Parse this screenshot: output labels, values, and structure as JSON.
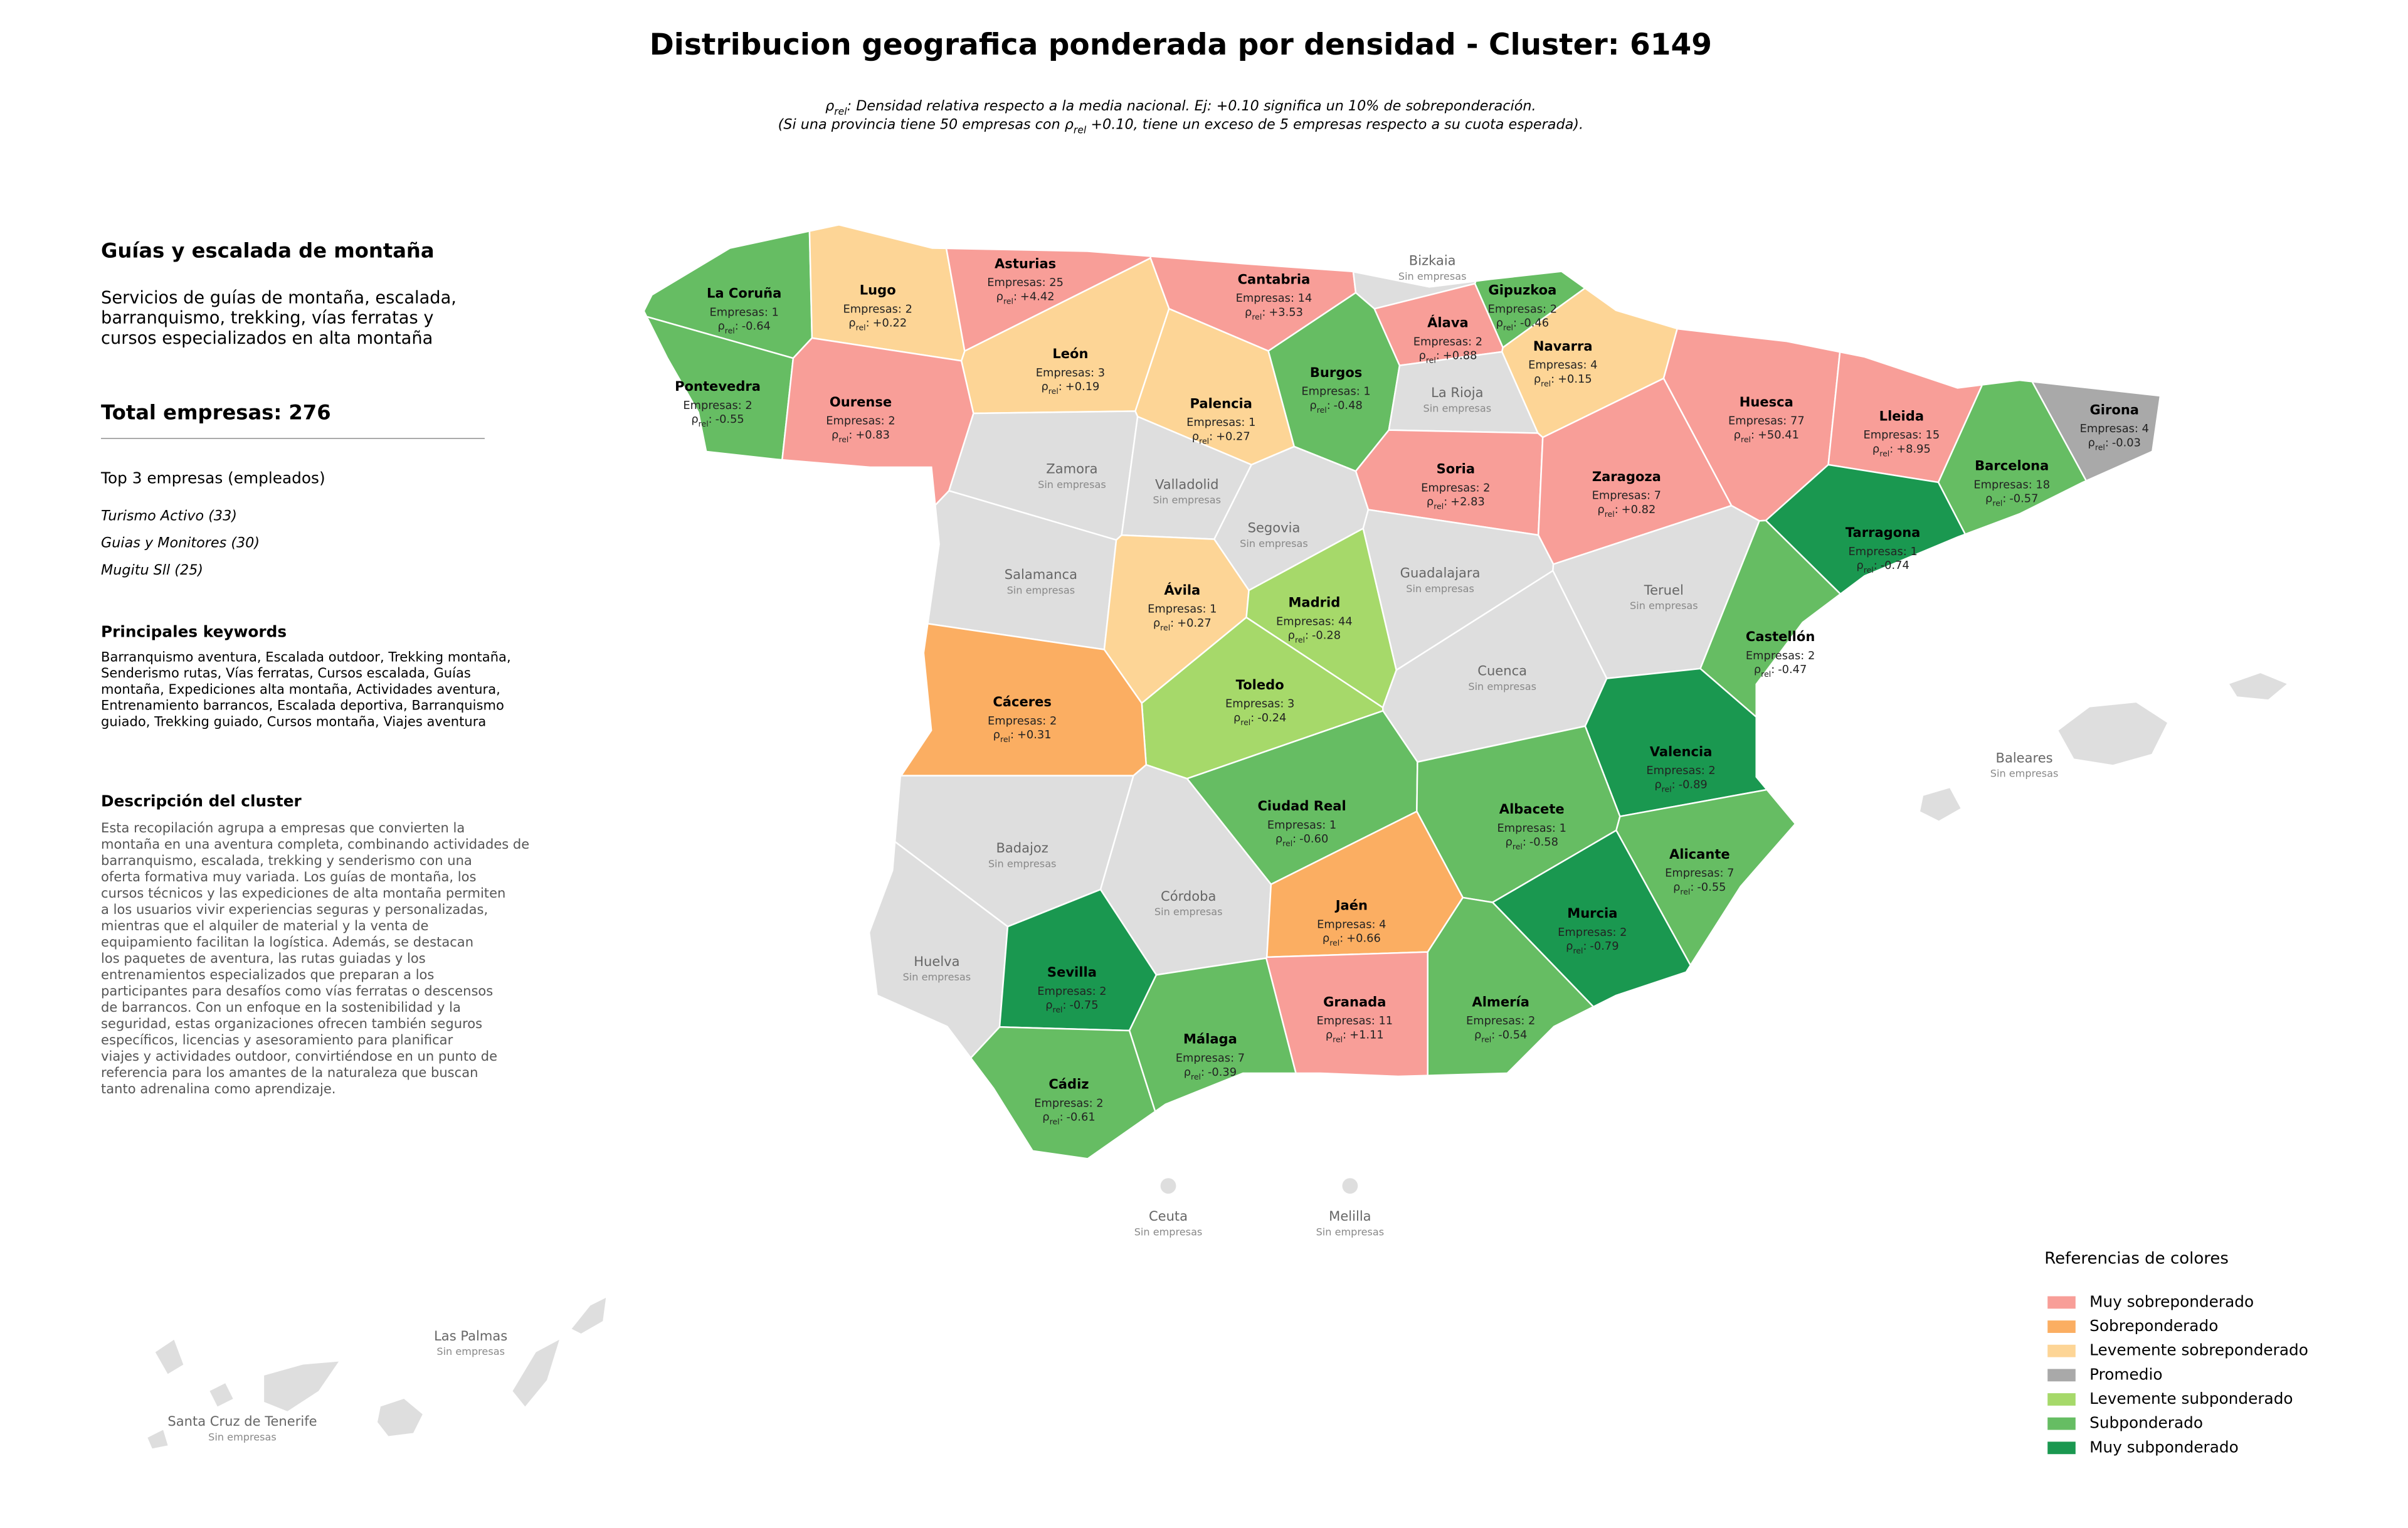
{
  "header": {
    "title": "Distribucion geografica ponderada por densidad - Cluster: 6149",
    "subtitle": [
      [
        {
          "t": "ρ"
        },
        {
          "sub": "rel"
        },
        {
          "t": ": Densidad relativa respecto a la media nacional. Ej: +0.10 significa un 10% de sobreponderación."
        }
      ],
      [
        {
          "t": "(Si una provincia tiene 50 empresas con ρ"
        },
        {
          "sub": "rel"
        },
        {
          "t": " +0.10, tiene un exceso de 5 empresas respecto a su cuota esperada)."
        }
      ]
    ]
  },
  "panel": {
    "heading": "Guías y escalada de montaña",
    "summary": [
      "Servicios de guías de montaña, escalada,",
      "barranquismo, trekking, vías ferratas y",
      "cursos especializados en alta montaña"
    ],
    "total": "Total empresas: 276",
    "top_title": "Top 3 empresas (empleados)",
    "top": [
      "Turismo Activo (33)",
      "Guias y Monitores (30)",
      "Mugitu Sll (25)"
    ],
    "keywords_title": "Principales keywords",
    "keywords": [
      "Barranquismo aventura, Escalada outdoor, Trekking montaña,",
      "Senderismo rutas, Vías ferratas, Cursos escalada, Guías",
      "montaña, Expediciones alta montaña, Actividades aventura,",
      "Entrenamiento barrancos, Escalada deportiva, Barranquismo",
      "guiado, Trekking guiado, Cursos montaña, Viajes aventura"
    ],
    "description_title": "Descripción del cluster",
    "description": [
      "Esta recopilación agrupa a empresas que convierten la",
      "montaña en una aventura completa, combinando actividades de",
      "barranquismo, escalada, trekking y senderismo con una",
      "oferta formativa muy variada. Los guías de montaña, los",
      "cursos técnicos y las expediciones de alta montaña permiten",
      "a los usuarios vivir experiencias seguras y personalizadas,",
      "mientras que el alquiler de material y la venta de",
      "equipamiento facilitan la logística. Además, se destacan",
      "los paquetes de aventura, las rutas guiadas y los",
      "entrenamientos especializados que preparan a los",
      "participantes para desafíos como vías ferratas o descensos",
      "de barrancos. Con un enfoque en la sostenibilidad y la",
      "seguridad, estas organizaciones ofrecen también seguros",
      "específicos, licencias y asesoramiento para planificar",
      "viajes y actividades outdoor, convirtiéndose en un punto de",
      "referencia para los amantes de la naturaleza que buscan",
      "tanto adrenalina como aprendizaje."
    ]
  },
  "map": {
    "rho_prefix": [
      {
        "t": "ρ"
      },
      {
        "sub": "rel"
      },
      {
        "t": ":"
      }
    ],
    "provinces": [
      {
        "name": "La Coruña",
        "empresas": "Empresas: 1",
        "rho": "-0.64",
        "color": "#66bd63"
      },
      {
        "name": "Lugo",
        "empresas": "Empresas: 2",
        "rho": "+0.22",
        "color": "#fdd596"
      },
      {
        "name": "Asturias",
        "empresas": "Empresas: 25",
        "rho": "+4.42",
        "color": "#f89e98"
      },
      {
        "name": "Cantabria",
        "empresas": "Empresas: 14",
        "rho": "+3.53",
        "color": "#f89e98"
      },
      {
        "name": "Bizkaia",
        "status": "Sin empresas",
        "color": "#dedede"
      },
      {
        "name": "Gipuzkoa",
        "empresas": "Empresas: 2",
        "rho": "-0.46",
        "color": "#66bd63"
      },
      {
        "name": "Pontevedra",
        "empresas": "Empresas: 2",
        "rho": "-0.55",
        "color": "#66bd63"
      },
      {
        "name": "Ourense",
        "empresas": "Empresas: 2",
        "rho": "+0.83",
        "color": "#f89e98"
      },
      {
        "name": "León",
        "empresas": "Empresas: 3",
        "rho": "+0.19",
        "color": "#fdd596"
      },
      {
        "name": "Palencia",
        "empresas": "Empresas: 1",
        "rho": "+0.27",
        "color": "#fdd596"
      },
      {
        "name": "Burgos",
        "empresas": "Empresas: 1",
        "rho": "-0.48",
        "color": "#66bd63"
      },
      {
        "name": "Álava",
        "empresas": "Empresas: 2",
        "rho": "+0.88",
        "color": "#f89e98"
      },
      {
        "name": "Navarra",
        "empresas": "Empresas: 4",
        "rho": "+0.15",
        "color": "#fdd596"
      },
      {
        "name": "La Rioja",
        "status": "Sin empresas",
        "color": "#dedede"
      },
      {
        "name": "Huesca",
        "empresas": "Empresas: 77",
        "rho": "+50.41",
        "color": "#f89e98"
      },
      {
        "name": "Lleida",
        "empresas": "Empresas: 15",
        "rho": "+8.95",
        "color": "#f89e98"
      },
      {
        "name": "Girona",
        "empresas": "Empresas: 4",
        "rho": "-0.03",
        "color": "#a9a9a9"
      },
      {
        "name": "Zamora",
        "status": "Sin empresas",
        "color": "#dedede"
      },
      {
        "name": "Valladolid",
        "status": "Sin empresas",
        "color": "#dedede"
      },
      {
        "name": "Soria",
        "empresas": "Empresas: 2",
        "rho": "+2.83",
        "color": "#f89e98"
      },
      {
        "name": "Zaragoza",
        "empresas": "Empresas: 7",
        "rho": "+0.82",
        "color": "#f89e98"
      },
      {
        "name": "Barcelona",
        "empresas": "Empresas: 18",
        "rho": "-0.57",
        "color": "#66bd63"
      },
      {
        "name": "Segovia",
        "status": "Sin empresas",
        "color": "#dedede"
      },
      {
        "name": "Salamanca",
        "status": "Sin empresas",
        "color": "#dedede"
      },
      {
        "name": "Ávila",
        "empresas": "Empresas: 1",
        "rho": "+0.27",
        "color": "#fdd596"
      },
      {
        "name": "Madrid",
        "empresas": "Empresas: 44",
        "rho": "-0.28",
        "color": "#a6d96a"
      },
      {
        "name": "Guadalajara",
        "status": "Sin empresas",
        "color": "#dedede"
      },
      {
        "name": "Teruel",
        "status": "Sin empresas",
        "color": "#dedede"
      },
      {
        "name": "Tarragona",
        "empresas": "Empresas: 1",
        "rho": "-0.74",
        "color": "#1a9850"
      },
      {
        "name": "Castellón",
        "empresas": "Empresas: 2",
        "rho": "-0.47",
        "color": "#66bd63"
      },
      {
        "name": "Cuenca",
        "status": "Sin empresas",
        "color": "#dedede"
      },
      {
        "name": "Toledo",
        "empresas": "Empresas: 3",
        "rho": "-0.24",
        "color": "#a6d96a"
      },
      {
        "name": "Cáceres",
        "empresas": "Empresas: 2",
        "rho": "+0.31",
        "color": "#fbae62"
      },
      {
        "name": "Valencia",
        "empresas": "Empresas: 2",
        "rho": "-0.89",
        "color": "#1a9850"
      },
      {
        "name": "Ciudad Real",
        "empresas": "Empresas: 1",
        "rho": "-0.60",
        "color": "#66bd63"
      },
      {
        "name": "Albacete",
        "empresas": "Empresas: 1",
        "rho": "-0.58",
        "color": "#66bd63"
      },
      {
        "name": "Badajoz",
        "status": "Sin empresas",
        "color": "#dedede"
      },
      {
        "name": "Alicante",
        "empresas": "Empresas: 7",
        "rho": "-0.55",
        "color": "#66bd63"
      },
      {
        "name": "Córdoba",
        "status": "Sin empresas",
        "color": "#dedede"
      },
      {
        "name": "Jaén",
        "empresas": "Empresas: 4",
        "rho": "+0.66",
        "color": "#fbae62"
      },
      {
        "name": "Murcia",
        "empresas": "Empresas: 2",
        "rho": "-0.79",
        "color": "#1a9850"
      },
      {
        "name": "Huelva",
        "status": "Sin empresas",
        "color": "#dedede"
      },
      {
        "name": "Sevilla",
        "empresas": "Empresas: 2",
        "rho": "-0.75",
        "color": "#1a9850"
      },
      {
        "name": "Granada",
        "empresas": "Empresas: 11",
        "rho": "+1.11",
        "color": "#f89e98"
      },
      {
        "name": "Almería",
        "empresas": "Empresas: 2",
        "rho": "-0.54",
        "color": "#66bd63"
      },
      {
        "name": "Málaga",
        "empresas": "Empresas: 7",
        "rho": "-0.39",
        "color": "#66bd63"
      },
      {
        "name": "Cádiz",
        "empresas": "Empresas: 2",
        "rho": "-0.61",
        "color": "#66bd63"
      },
      {
        "name": "Baleares",
        "status": "Sin empresas",
        "color": "#dedede"
      },
      {
        "name": "Ceuta",
        "status": "Sin empresas",
        "color": "#dedede"
      },
      {
        "name": "Melilla",
        "status": "Sin empresas",
        "color": "#dedede"
      },
      {
        "name": "Las Palmas",
        "status": "Sin empresas",
        "color": "#dedede"
      },
      {
        "name": "Santa Cruz de Tenerife",
        "status": "Sin empresas",
        "color": "#dedede"
      }
    ]
  },
  "legend": {
    "title": "Referencias de colores",
    "items": [
      {
        "label": "Muy sobreponderado",
        "color": "#f89e98"
      },
      {
        "label": "Sobreponderado",
        "color": "#fbae62"
      },
      {
        "label": "Levemente sobreponderado",
        "color": "#fdd596"
      },
      {
        "label": "Promedio",
        "color": "#a9a9a9"
      },
      {
        "label": "Levemente subponderado",
        "color": "#a6d96a"
      },
      {
        "label": "Subponderado",
        "color": "#66bd63"
      },
      {
        "label": "Muy subponderado",
        "color": "#1a9850"
      }
    ]
  }
}
